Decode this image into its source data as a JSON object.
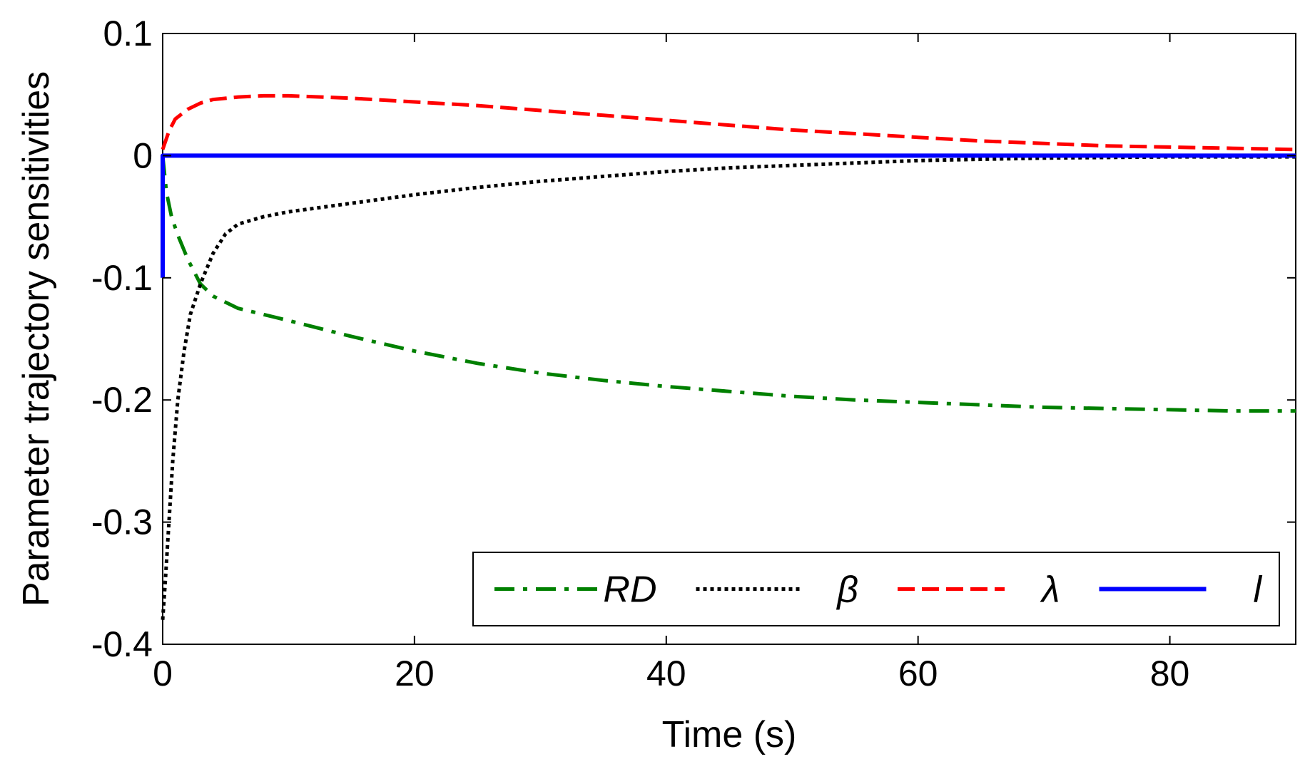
{
  "chart_data": {
    "type": "line",
    "title": "",
    "xlabel": "Time (s)",
    "ylabel": "Parameter trajectory sensitivities",
    "xlim": [
      0,
      90
    ],
    "ylim": [
      -0.4,
      0.1
    ],
    "xticks": [
      0,
      20,
      40,
      60,
      80
    ],
    "xtick_labels": [
      "0",
      "20",
      "40",
      "60",
      "80"
    ],
    "yticks": [
      0.1,
      0,
      -0.1,
      -0.2,
      -0.3,
      -0.4
    ],
    "ytick_labels": [
      "0.1",
      "0",
      "-0.1",
      "-0.2",
      "-0.3",
      "-0.4"
    ],
    "grid": false,
    "legend_position": "bottom-right",
    "series": [
      {
        "name": "RD",
        "color": "#008000",
        "style": "dash-dot",
        "points": [
          [
            0,
            0
          ],
          [
            0.3,
            -0.03
          ],
          [
            0.7,
            -0.05
          ],
          [
            1.2,
            -0.065
          ],
          [
            2,
            -0.085
          ],
          [
            3,
            -0.105
          ],
          [
            4,
            -0.115
          ],
          [
            6,
            -0.125
          ],
          [
            8,
            -0.13
          ],
          [
            10,
            -0.135
          ],
          [
            15,
            -0.148
          ],
          [
            20,
            -0.16
          ],
          [
            25,
            -0.17
          ],
          [
            30,
            -0.178
          ],
          [
            35,
            -0.184
          ],
          [
            40,
            -0.189
          ],
          [
            45,
            -0.193
          ],
          [
            50,
            -0.197
          ],
          [
            55,
            -0.2
          ],
          [
            60,
            -0.202
          ],
          [
            65,
            -0.204
          ],
          [
            70,
            -0.206
          ],
          [
            75,
            -0.207
          ],
          [
            80,
            -0.208
          ],
          [
            85,
            -0.209
          ],
          [
            90,
            -0.209
          ]
        ]
      },
      {
        "name": "β",
        "color": "#000000",
        "style": "dotted",
        "points": [
          [
            0,
            -0.38
          ],
          [
            0.2,
            -0.35
          ],
          [
            0.5,
            -0.3
          ],
          [
            0.8,
            -0.25
          ],
          [
            1.2,
            -0.2
          ],
          [
            1.7,
            -0.16
          ],
          [
            2.2,
            -0.13
          ],
          [
            3,
            -0.105
          ],
          [
            4,
            -0.08
          ],
          [
            5,
            -0.064
          ],
          [
            6,
            -0.056
          ],
          [
            8,
            -0.05
          ],
          [
            10,
            -0.046
          ],
          [
            15,
            -0.039
          ],
          [
            20,
            -0.032
          ],
          [
            25,
            -0.026
          ],
          [
            30,
            -0.021
          ],
          [
            35,
            -0.017
          ],
          [
            40,
            -0.013
          ],
          [
            45,
            -0.01
          ],
          [
            50,
            -0.008
          ],
          [
            55,
            -0.006
          ],
          [
            60,
            -0.004
          ],
          [
            65,
            -0.003
          ],
          [
            70,
            -0.002
          ],
          [
            80,
            -0.001
          ],
          [
            90,
            -0.001
          ]
        ]
      },
      {
        "name": "λ",
        "color": "#ff0000",
        "style": "dashed",
        "points": [
          [
            0,
            0.005
          ],
          [
            0.5,
            0.02
          ],
          [
            1,
            0.03
          ],
          [
            2,
            0.038
          ],
          [
            3,
            0.043
          ],
          [
            4,
            0.046
          ],
          [
            6,
            0.048
          ],
          [
            8,
            0.049
          ],
          [
            10,
            0.049
          ],
          [
            15,
            0.047
          ],
          [
            20,
            0.044
          ],
          [
            25,
            0.041
          ],
          [
            30,
            0.037
          ],
          [
            35,
            0.033
          ],
          [
            40,
            0.029
          ],
          [
            45,
            0.025
          ],
          [
            50,
            0.021
          ],
          [
            55,
            0.018
          ],
          [
            60,
            0.015
          ],
          [
            65,
            0.012
          ],
          [
            70,
            0.01
          ],
          [
            75,
            0.008
          ],
          [
            80,
            0.007
          ],
          [
            85,
            0.006
          ],
          [
            90,
            0.005
          ]
        ]
      },
      {
        "name": "l",
        "color": "#0000ff",
        "style": "solid",
        "points": [
          [
            0,
            -0.1
          ],
          [
            0,
            0
          ],
          [
            90,
            0
          ]
        ]
      }
    ]
  }
}
